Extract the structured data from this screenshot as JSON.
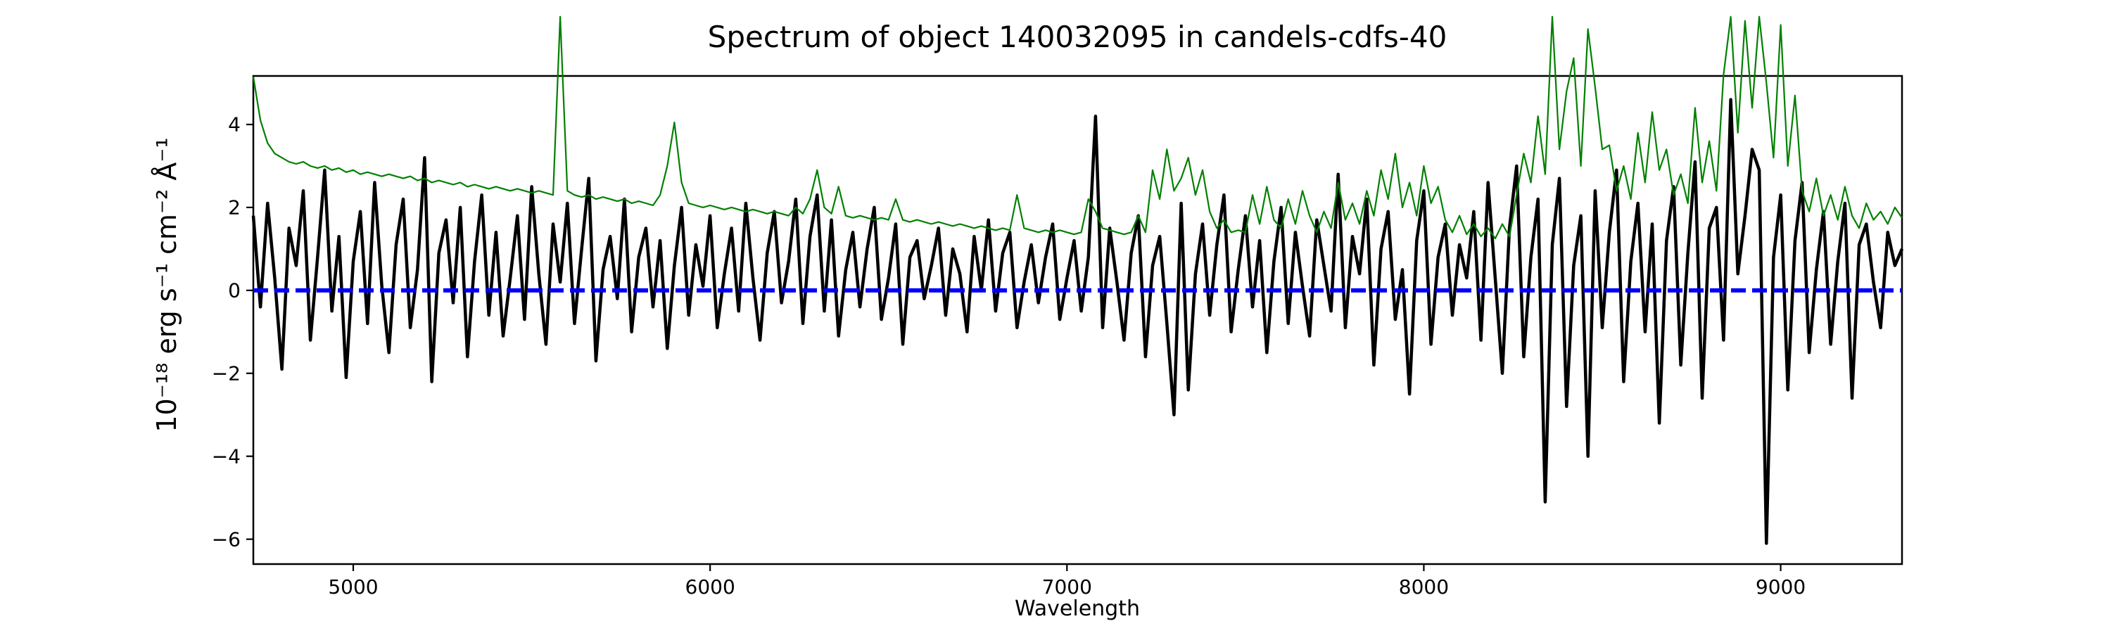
{
  "figure": {
    "title": "Spectrum of object 140032095 in candels-cdfs-40",
    "xlabel": "Wavelength",
    "ylabel": "10⁻¹⁸ erg s⁻¹ cm⁻² Å⁻¹",
    "background_color": "#ffffff",
    "axis_color": "#000000"
  },
  "chart_data": {
    "type": "line",
    "title": "Spectrum of object 140032095 in candels-cdfs-40",
    "xlabel": "Wavelength",
    "ylabel": "10⁻¹⁸ erg s⁻¹ cm⁻² Å⁻¹",
    "xlim": [
      4720,
      9340
    ],
    "ylim": [
      -6.6,
      5.17
    ],
    "xticks": [
      5000,
      6000,
      7000,
      8000,
      9000
    ],
    "yticks": [
      4,
      2,
      0,
      -2,
      -4,
      -6
    ],
    "grid": false,
    "legend": null,
    "zero_line": {
      "y": 0,
      "color": "#0000ff",
      "style": "dashed",
      "linewidth": 6
    },
    "series": [
      {
        "name": "object-flux-spectrum",
        "color": "#000000",
        "linewidth": 4.5,
        "x_start": 4720,
        "x_step": 20,
        "values": [
          1.8,
          -0.4,
          2.1,
          0.3,
          -1.9,
          1.5,
          0.6,
          2.4,
          -1.2,
          0.8,
          2.9,
          -0.5,
          1.3,
          -2.1,
          0.7,
          1.9,
          -0.8,
          2.6,
          0.1,
          -1.5,
          1.1,
          2.2,
          -0.9,
          0.5,
          3.2,
          -2.2,
          0.9,
          1.7,
          -0.3,
          2.0,
          -1.6,
          0.7,
          2.3,
          -0.6,
          1.4,
          -1.1,
          0.3,
          1.8,
          -0.7,
          2.5,
          0.4,
          -1.3,
          1.6,
          0.2,
          2.1,
          -0.8,
          1.0,
          2.7,
          -1.7,
          0.5,
          1.3,
          -0.2,
          2.2,
          -1.0,
          0.8,
          1.5,
          -0.4,
          1.2,
          -1.4,
          0.6,
          2.0,
          -0.6,
          1.1,
          0.1,
          1.8,
          -0.9,
          0.4,
          1.5,
          -0.5,
          2.1,
          0.3,
          -1.2,
          0.9,
          1.9,
          -0.3,
          0.7,
          2.2,
          -0.8,
          1.3,
          2.3,
          -0.5,
          1.7,
          -1.1,
          0.5,
          1.4,
          -0.4,
          1.0,
          2.0,
          -0.7,
          0.3,
          1.6,
          -1.3,
          0.8,
          1.2,
          -0.2,
          0.6,
          1.5,
          -0.6,
          1.0,
          0.4,
          -1.0,
          1.3,
          0.0,
          1.7,
          -0.5,
          0.9,
          1.4,
          -0.9,
          0.2,
          1.1,
          -0.3,
          0.8,
          1.6,
          -0.7,
          0.3,
          1.2,
          -0.5,
          0.8,
          4.2,
          -0.9,
          1.5,
          0.2,
          -1.2,
          0.9,
          1.8,
          -1.6,
          0.6,
          1.3,
          -0.8,
          -3.0,
          2.1,
          -2.4,
          0.4,
          1.6,
          -0.6,
          1.1,
          2.3,
          -1.0,
          0.5,
          1.8,
          -0.4,
          1.2,
          -1.5,
          0.7,
          2.0,
          -0.8,
          1.4,
          0.1,
          -1.1,
          1.7,
          0.6,
          -0.5,
          2.8,
          -0.9,
          1.3,
          0.4,
          2.2,
          -1.8,
          1.0,
          1.9,
          -0.7,
          0.5,
          -2.5,
          1.2,
          2.4,
          -1.3,
          0.8,
          1.6,
          -0.6,
          1.1,
          0.3,
          1.9,
          -1.2,
          2.6,
          0.3,
          -2.0,
          1.5,
          3.0,
          -1.6,
          0.8,
          2.2,
          -5.1,
          1.1,
          2.7,
          -2.8,
          0.6,
          1.8,
          -4.0,
          2.4,
          -0.9,
          1.4,
          2.9,
          -2.2,
          0.7,
          2.1,
          -1.0,
          1.6,
          -3.2,
          1.2,
          2.5,
          -1.8,
          0.9,
          3.1,
          -2.6,
          1.5,
          2.0,
          -1.2,
          4.6,
          0.4,
          1.8,
          3.4,
          2.9,
          -6.1,
          0.8,
          2.3,
          -2.4,
          1.2,
          2.6,
          -1.5,
          0.5,
          1.9,
          -1.3,
          0.7,
          2.1,
          -2.6,
          1.1,
          1.6,
          0.2,
          -0.9,
          1.4,
          0.6,
          1.0
        ]
      },
      {
        "name": "sky-noise-spectrum",
        "color": "#008000",
        "linewidth": 2.2,
        "x_start": 4720,
        "x_step": 20,
        "values": [
          5.15,
          4.1,
          3.55,
          3.3,
          3.2,
          3.1,
          3.05,
          3.1,
          3.0,
          2.95,
          3.0,
          2.9,
          2.95,
          2.85,
          2.9,
          2.8,
          2.85,
          2.8,
          2.75,
          2.8,
          2.75,
          2.7,
          2.75,
          2.65,
          2.7,
          2.6,
          2.65,
          2.6,
          2.55,
          2.6,
          2.5,
          2.55,
          2.5,
          2.45,
          2.5,
          2.45,
          2.4,
          2.45,
          2.4,
          2.35,
          2.4,
          2.35,
          2.3,
          6.6,
          2.4,
          2.3,
          2.25,
          2.3,
          2.2,
          2.25,
          2.2,
          2.15,
          2.2,
          2.1,
          2.15,
          2.1,
          2.05,
          2.3,
          3.0,
          4.05,
          2.6,
          2.1,
          2.05,
          2.0,
          2.05,
          2.0,
          1.95,
          2.0,
          1.95,
          1.9,
          1.95,
          1.9,
          1.85,
          1.9,
          1.85,
          1.8,
          2.0,
          1.85,
          2.2,
          2.9,
          2.0,
          1.85,
          2.5,
          1.8,
          1.75,
          1.8,
          1.75,
          1.7,
          1.75,
          1.7,
          2.2,
          1.7,
          1.65,
          1.7,
          1.65,
          1.6,
          1.65,
          1.6,
          1.55,
          1.6,
          1.55,
          1.5,
          1.55,
          1.5,
          1.45,
          1.5,
          1.45,
          2.3,
          1.5,
          1.45,
          1.4,
          1.45,
          1.4,
          1.45,
          1.4,
          1.35,
          1.4,
          2.2,
          1.9,
          1.5,
          1.45,
          1.4,
          1.35,
          1.4,
          1.8,
          1.4,
          2.9,
          2.2,
          3.4,
          2.4,
          2.7,
          3.2,
          2.3,
          2.9,
          1.9,
          1.5,
          1.7,
          1.4,
          1.45,
          1.4,
          2.3,
          1.6,
          2.5,
          1.7,
          1.5,
          2.2,
          1.6,
          2.4,
          1.8,
          1.4,
          1.9,
          1.5,
          2.6,
          1.7,
          2.1,
          1.6,
          2.4,
          1.8,
          2.9,
          2.2,
          3.3,
          2.0,
          2.6,
          1.8,
          3.0,
          2.1,
          2.5,
          1.7,
          1.4,
          1.8,
          1.35,
          1.6,
          1.3,
          1.5,
          1.25,
          1.6,
          1.3,
          2.3,
          3.3,
          2.6,
          4.2,
          2.8,
          6.6,
          3.4,
          4.8,
          5.6,
          3.0,
          6.3,
          4.9,
          3.4,
          3.5,
          2.4,
          3.0,
          2.2,
          3.8,
          2.6,
          4.3,
          2.9,
          3.4,
          2.3,
          2.8,
          2.1,
          4.4,
          2.6,
          3.6,
          2.4,
          5.2,
          6.6,
          3.8,
          6.5,
          4.4,
          6.6,
          5.0,
          3.2,
          6.4,
          3.0,
          4.7,
          2.4,
          1.9,
          2.7,
          1.8,
          2.3,
          1.7,
          2.5,
          1.8,
          1.5,
          2.1,
          1.7,
          1.9,
          1.6,
          2.0,
          1.75
        ]
      }
    ]
  }
}
